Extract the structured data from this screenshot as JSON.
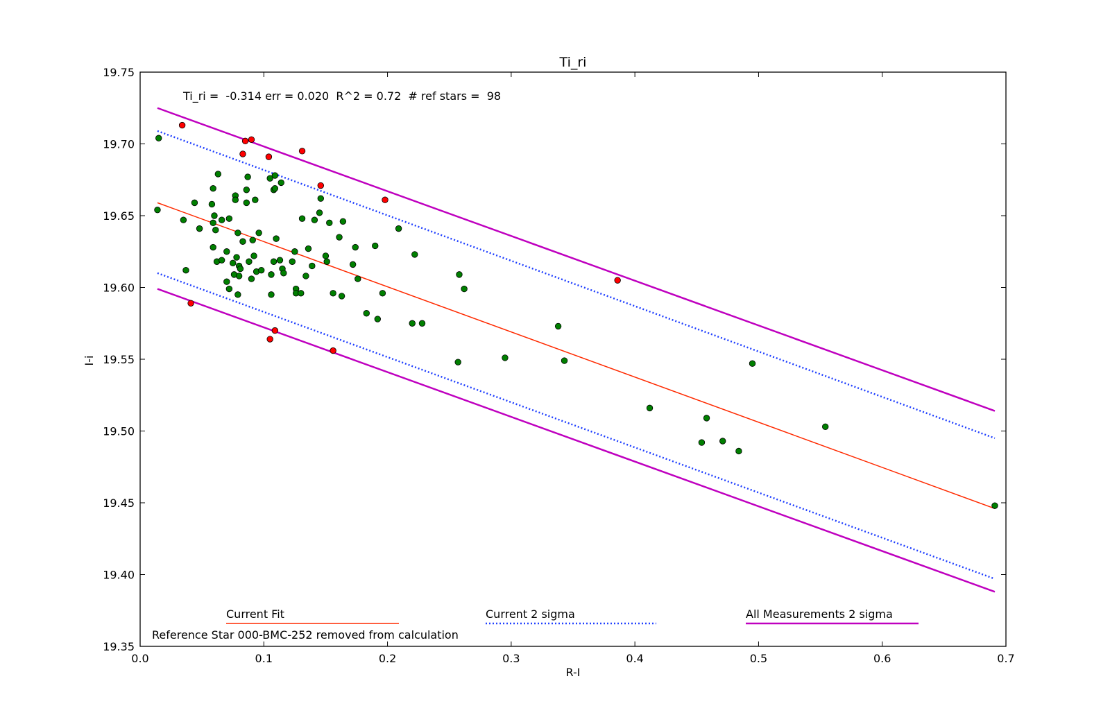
{
  "chart_data": {
    "type": "scatter",
    "title": "Ti_ri",
    "xlabel": "R-I",
    "ylabel": "I-i",
    "xlim": [
      0.0,
      0.7
    ],
    "ylim": [
      19.35,
      19.75
    ],
    "x_ticks": [
      "0.0",
      "0.1",
      "0.2",
      "0.3",
      "0.4",
      "0.5",
      "0.6",
      "0.7"
    ],
    "y_ticks": [
      "19.35",
      "19.40",
      "19.45",
      "19.50",
      "19.55",
      "19.60",
      "19.65",
      "19.70",
      "19.75"
    ],
    "grid": false,
    "annotation": "Ti_ri =  -0.314 err = 0.020  R^2 = 0.72  # ref stars =  98",
    "footnote": "Reference Star 000-BMC-252 removed from calculation",
    "colors": {
      "fit": "#ff2a00",
      "sigma2": "#1f3fff",
      "all_sigma2": "#bf00bf",
      "included": "#007f00",
      "excluded": "#ff0000"
    },
    "legend": [
      {
        "label": "Current Fit",
        "style": "solid-thin",
        "color": "#ff2a00"
      },
      {
        "label": "Current 2 sigma",
        "style": "dotted",
        "color": "#1f3fff"
      },
      {
        "label": "All Measurements 2 sigma",
        "style": "solid-thick",
        "color": "#bf00bf"
      }
    ],
    "lines": [
      {
        "name": "Current Fit",
        "x": [
          0.014,
          0.691
        ],
        "y": [
          19.659,
          19.446
        ]
      },
      {
        "name": "Current 2 sigma upper",
        "x": [
          0.014,
          0.691
        ],
        "y": [
          19.709,
          19.495
        ]
      },
      {
        "name": "Current 2 sigma lower",
        "x": [
          0.014,
          0.691
        ],
        "y": [
          19.61,
          19.397
        ]
      },
      {
        "name": "All Measurements 2 sigma upper",
        "x": [
          0.014,
          0.691
        ],
        "y": [
          19.725,
          19.514
        ]
      },
      {
        "name": "All Measurements 2 sigma lower",
        "x": [
          0.014,
          0.691
        ],
        "y": [
          19.599,
          19.388
        ]
      }
    ],
    "series": [
      {
        "role": "included",
        "points": [
          [
            0.015,
            19.704
          ],
          [
            0.014,
            19.654
          ],
          [
            0.035,
            19.647
          ],
          [
            0.037,
            19.612
          ],
          [
            0.044,
            19.659
          ],
          [
            0.048,
            19.641
          ],
          [
            0.058,
            19.658
          ],
          [
            0.059,
            19.669
          ],
          [
            0.059,
            19.645
          ],
          [
            0.059,
            19.628
          ],
          [
            0.06,
            19.65
          ],
          [
            0.061,
            19.64
          ],
          [
            0.062,
            19.618
          ],
          [
            0.063,
            19.679
          ],
          [
            0.066,
            19.619
          ],
          [
            0.066,
            19.647
          ],
          [
            0.07,
            19.625
          ],
          [
            0.07,
            19.604
          ],
          [
            0.072,
            19.599
          ],
          [
            0.072,
            19.648
          ],
          [
            0.075,
            19.617
          ],
          [
            0.076,
            19.609
          ],
          [
            0.077,
            19.664
          ],
          [
            0.077,
            19.661
          ],
          [
            0.078,
            19.621
          ],
          [
            0.079,
            19.638
          ],
          [
            0.079,
            19.595
          ],
          [
            0.08,
            19.615
          ],
          [
            0.08,
            19.608
          ],
          [
            0.081,
            19.613
          ],
          [
            0.083,
            19.632
          ],
          [
            0.086,
            19.668
          ],
          [
            0.086,
            19.659
          ],
          [
            0.087,
            19.677
          ],
          [
            0.088,
            19.618
          ],
          [
            0.09,
            19.606
          ],
          [
            0.091,
            19.633
          ],
          [
            0.092,
            19.622
          ],
          [
            0.093,
            19.661
          ],
          [
            0.094,
            19.611
          ],
          [
            0.096,
            19.638
          ],
          [
            0.098,
            19.612
          ],
          [
            0.105,
            19.676
          ],
          [
            0.106,
            19.609
          ],
          [
            0.106,
            19.595
          ],
          [
            0.108,
            19.618
          ],
          [
            0.108,
            19.668
          ],
          [
            0.109,
            19.669
          ],
          [
            0.109,
            19.678
          ],
          [
            0.11,
            19.634
          ],
          [
            0.113,
            19.619
          ],
          [
            0.114,
            19.673
          ],
          [
            0.115,
            19.613
          ],
          [
            0.116,
            19.61
          ],
          [
            0.123,
            19.618
          ],
          [
            0.125,
            19.625
          ],
          [
            0.126,
            19.599
          ],
          [
            0.126,
            19.596
          ],
          [
            0.13,
            19.596
          ],
          [
            0.131,
            19.648
          ],
          [
            0.134,
            19.608
          ],
          [
            0.136,
            19.627
          ],
          [
            0.139,
            19.615
          ],
          [
            0.141,
            19.647
          ],
          [
            0.145,
            19.652
          ],
          [
            0.146,
            19.662
          ],
          [
            0.15,
            19.622
          ],
          [
            0.151,
            19.618
          ],
          [
            0.153,
            19.645
          ],
          [
            0.156,
            19.596
          ],
          [
            0.161,
            19.635
          ],
          [
            0.163,
            19.594
          ],
          [
            0.164,
            19.646
          ],
          [
            0.172,
            19.616
          ],
          [
            0.174,
            19.628
          ],
          [
            0.176,
            19.606
          ],
          [
            0.183,
            19.582
          ],
          [
            0.19,
            19.629
          ],
          [
            0.192,
            19.578
          ],
          [
            0.196,
            19.596
          ],
          [
            0.209,
            19.641
          ],
          [
            0.22,
            19.575
          ],
          [
            0.222,
            19.623
          ],
          [
            0.228,
            19.575
          ],
          [
            0.257,
            19.548
          ],
          [
            0.258,
            19.609
          ],
          [
            0.262,
            19.599
          ],
          [
            0.295,
            19.551
          ],
          [
            0.338,
            19.573
          ],
          [
            0.343,
            19.549
          ],
          [
            0.412,
            19.516
          ],
          [
            0.454,
            19.492
          ],
          [
            0.458,
            19.509
          ],
          [
            0.471,
            19.493
          ],
          [
            0.484,
            19.486
          ],
          [
            0.495,
            19.547
          ],
          [
            0.554,
            19.503
          ],
          [
            0.691,
            19.448
          ]
        ]
      },
      {
        "role": "excluded",
        "points": [
          [
            0.034,
            19.713
          ],
          [
            0.041,
            19.589
          ],
          [
            0.083,
            19.693
          ],
          [
            0.085,
            19.702
          ],
          [
            0.09,
            19.703
          ],
          [
            0.104,
            19.691
          ],
          [
            0.105,
            19.564
          ],
          [
            0.109,
            19.57
          ],
          [
            0.131,
            19.695
          ],
          [
            0.146,
            19.671
          ],
          [
            0.156,
            19.556
          ],
          [
            0.198,
            19.661
          ],
          [
            0.386,
            19.605
          ]
        ]
      }
    ]
  }
}
